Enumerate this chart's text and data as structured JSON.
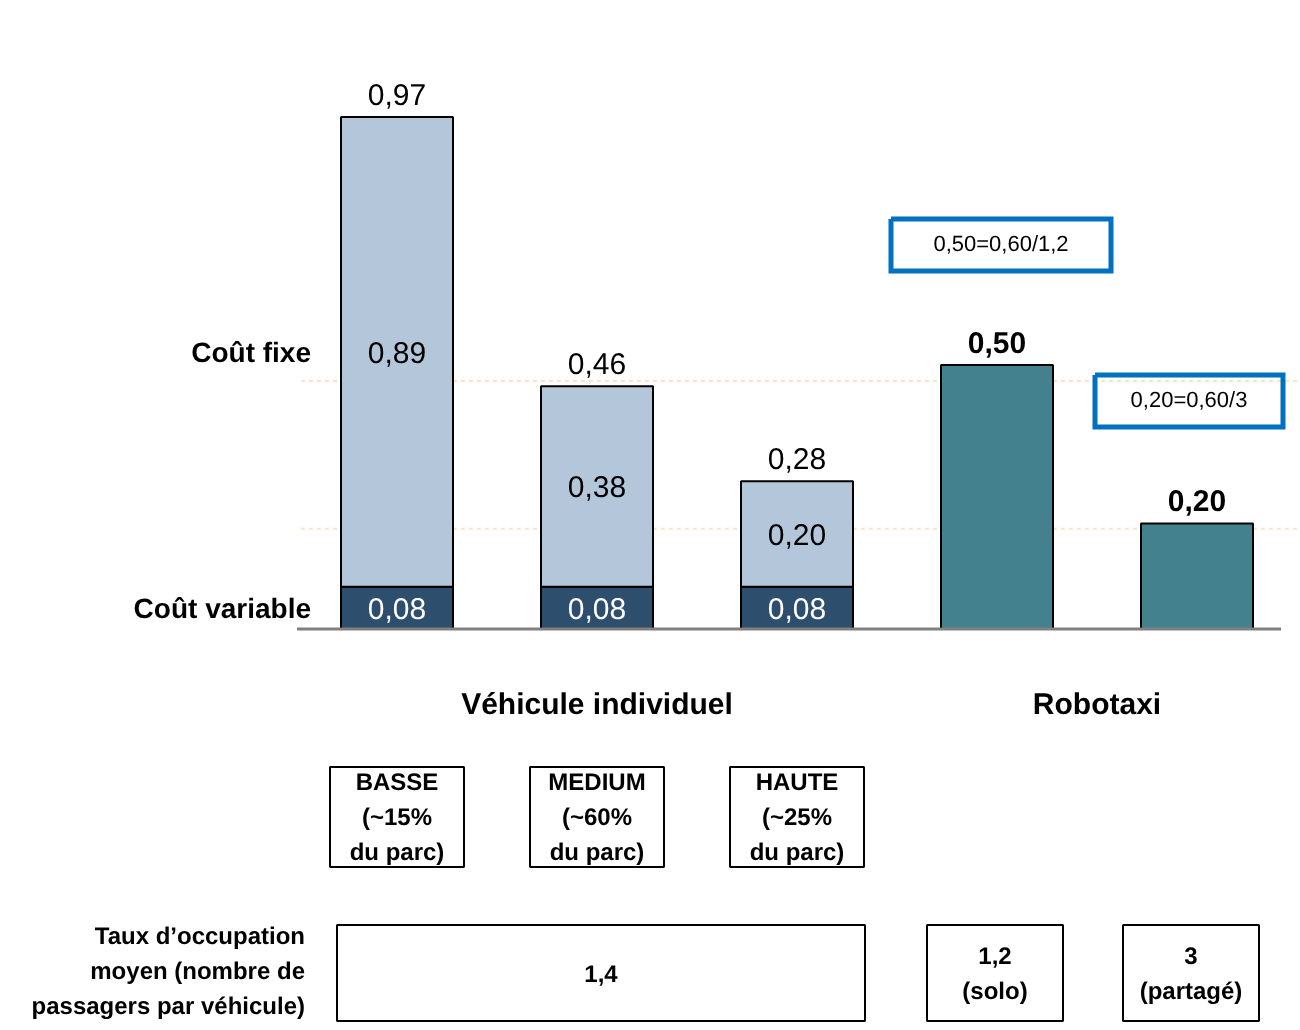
{
  "chart_data": {
    "type": "bar",
    "stacked": true,
    "categories": [
      "BASSE\n(~15%\ndu parc)",
      "MEDIUM\n(~60%\ndu parc)",
      "HAUTE\n(~25%\ndu parc)",
      null,
      null
    ],
    "series": [
      {
        "name": "Coût variable",
        "color": "#2e4e6e",
        "values": [
          0.08,
          0.08,
          0.08,
          null,
          null
        ],
        "value_labels": [
          "0,08",
          "0,08",
          "0,08",
          null,
          null
        ]
      },
      {
        "name": "Coût fixe",
        "color": "#b4c6da",
        "values": [
          0.89,
          0.38,
          0.2,
          null,
          null
        ],
        "value_labels": [
          "0,89",
          "0,38",
          "0,20",
          null,
          null
        ]
      },
      {
        "color": "#43818e",
        "values": [
          null,
          null,
          null,
          0.5,
          0.2
        ],
        "value_labels": [
          null,
          null,
          null,
          "0,50",
          "0,20"
        ]
      }
    ],
    "totals": [
      "0,97",
      "0,46",
      "0,28",
      null,
      null
    ],
    "ref_lines": [
      {
        "axis": "y",
        "value": 0.47,
        "color": "#fbe3c8",
        "line_style": "dotted"
      },
      {
        "axis": "y",
        "value": 0.19,
        "color": "#fbe3c8",
        "line_style": "dotted"
      }
    ],
    "annotations": [
      "Véhicule individuel",
      "Robotaxi",
      "0,50=0,60/1,2",
      "0,20=0,60/3",
      "Taux d’occupation\nmoyen (nombre de\npassagers par véhicule)",
      "1,4",
      "1,2\n(solo)",
      "3\n(partagé)"
    ],
    "grid": false
  }
}
